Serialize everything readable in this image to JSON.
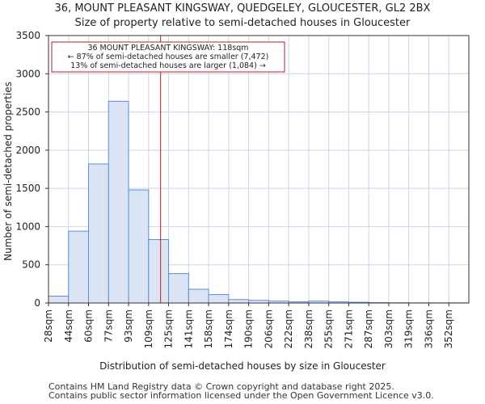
{
  "title_line1": "36, MOUNT PLEASANT KINGSWAY, QUEDGELEY, GLOUCESTER, GL2 2BX",
  "title_line2": "Size of property relative to semi-detached houses in Gloucester",
  "footer_line1": "Contains HM Land Registry data © Crown copyright and database right 2025.",
  "footer_line2": "Contains public sector information licensed under the Open Government Licence v3.0.",
  "colors": {
    "bar_fill": "#dbe4f4",
    "bar_stroke": "#5b8fd4",
    "marker": "#b22222",
    "grid": "#c9d5e8",
    "annotation_border": "#b22222"
  },
  "chart_data": {
    "type": "bar",
    "title": "Size of property relative to semi-detached houses in Gloucester",
    "xlabel": "Distribution of semi-detached houses by size in Gloucester",
    "ylabel": "Number of semi-detached properties",
    "ylim": [
      0,
      3500
    ],
    "yticks": [
      0,
      500,
      1000,
      1500,
      2000,
      2500,
      3000,
      3500
    ],
    "grid": true,
    "categories": [
      "28sqm",
      "44sqm",
      "60sqm",
      "77sqm",
      "93sqm",
      "109sqm",
      "125sqm",
      "141sqm",
      "158sqm",
      "174sqm",
      "190sqm",
      "206sqm",
      "222sqm",
      "238sqm",
      "255sqm",
      "271sqm",
      "287sqm",
      "303sqm",
      "319sqm",
      "336sqm",
      "352sqm"
    ],
    "values": [
      90,
      940,
      1820,
      2640,
      1480,
      830,
      385,
      180,
      110,
      45,
      35,
      25,
      15,
      25,
      15,
      10,
      5,
      3,
      2,
      2,
      2
    ],
    "marker_bin_position": 5.6,
    "annotation": {
      "line1": "36 MOUNT PLEASANT KINGSWAY: 118sqm",
      "line2": "← 87% of semi-detached houses are smaller (7,472)",
      "line3": "13% of semi-detached houses are larger (1,084) →"
    }
  }
}
